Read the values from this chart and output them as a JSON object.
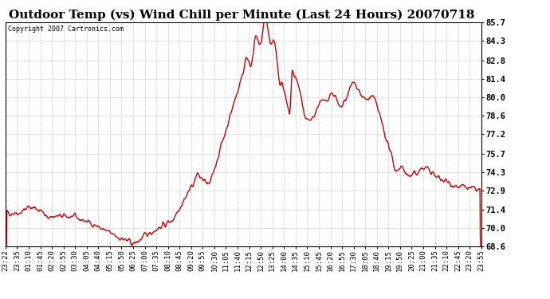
{
  "title": "Outdoor Temp (vs) Wind Chill per Minute (Last 24 Hours) 20070718",
  "copyright": "Copyright 2007 Cartronics.com",
  "line_color": "#cc0000",
  "bg_color": "#ffffff",
  "grid_color": "#c8c8c8",
  "ylim": [
    68.6,
    85.7
  ],
  "yticks": [
    68.6,
    70.0,
    71.4,
    72.9,
    74.3,
    75.7,
    77.2,
    78.6,
    80.0,
    81.4,
    82.8,
    84.3,
    85.7
  ],
  "xtick_labels": [
    "23:22",
    "23:35",
    "01:10",
    "01:45",
    "02:20",
    "02:55",
    "03:30",
    "04:05",
    "04:40",
    "05:15",
    "05:50",
    "06:25",
    "07:00",
    "07:35",
    "08:10",
    "08:45",
    "09:20",
    "09:55",
    "10:30",
    "11:05",
    "11:40",
    "12:15",
    "12:50",
    "13:25",
    "14:00",
    "14:35",
    "15:10",
    "15:45",
    "16:20",
    "16:55",
    "17:30",
    "18:05",
    "18:40",
    "19:15",
    "19:50",
    "20:25",
    "21:00",
    "21:35",
    "22:10",
    "22:45",
    "23:20",
    "23:55"
  ],
  "n_ticks": 42,
  "line_width": 1.0,
  "title_fontsize": 11,
  "tick_fontsize": 6.5,
  "copyright_fontsize": 6.0
}
